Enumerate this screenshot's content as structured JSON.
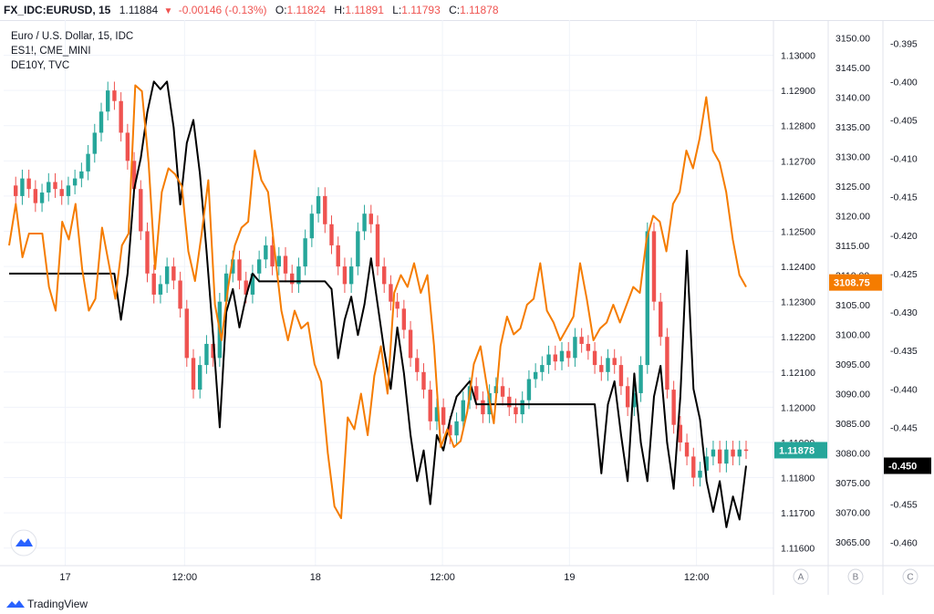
{
  "topbar": {
    "symbol": "FX_IDC:EURUSD, 15",
    "last": "1.11884",
    "arrow": "▼",
    "change": "-0.00146 (-0.13%)",
    "o_label": "O:",
    "o_value": "1.11824",
    "h_label": "H:",
    "h_value": "1.11891",
    "l_label": "L:",
    "l_value": "1.11793",
    "c_label": "C:",
    "c_value": "1.11878"
  },
  "legend": {
    "main": "Euro / U.S. Dollar, 15, IDC",
    "s1": "ES1!, CME_MINI",
    "s2": "DE10Y, TVC"
  },
  "footer": {
    "brand": "TradingView"
  },
  "colors": {
    "up": "#26a69a",
    "down": "#ef5350",
    "es": "#f57c00",
    "de": "#000000",
    "grid": "#f0f3fa",
    "axis": "#e0e3eb"
  },
  "chart_data": {
    "type": "line",
    "time_labels": [
      "17",
      "12:00",
      "18",
      "12:00",
      "19",
      "12:00"
    ],
    "axes": {
      "eurusd": {
        "ticks": [
          "1.13000",
          "1.12900",
          "1.12800",
          "1.12700",
          "1.12600",
          "1.12500",
          "1.12400",
          "1.12300",
          "1.12200",
          "1.12100",
          "1.12000",
          "1.11900",
          "1.11800",
          "1.11700",
          "1.11600"
        ],
        "range": [
          1.1155,
          1.131
        ],
        "last_tag": "1.11878"
      },
      "es1": {
        "ticks": [
          "3150.00",
          "3145.00",
          "3140.00",
          "3135.00",
          "3130.00",
          "3125.00",
          "3120.00",
          "3115.00",
          "3110.00",
          "3105.00",
          "3100.00",
          "3095.00",
          "3090.00",
          "3085.00",
          "3080.00",
          "3075.00",
          "3070.00",
          "3065.00"
        ],
        "range": [
          3061,
          3153
        ],
        "last_tag": "3108.75"
      },
      "de10y": {
        "ticks": [
          "-0.395",
          "-0.400",
          "-0.405",
          "-0.410",
          "-0.415",
          "-0.420",
          "-0.425",
          "-0.430",
          "-0.435",
          "-0.440",
          "-0.445",
          "-0.450",
          "-0.455",
          "-0.460"
        ],
        "range": [
          -0.463,
          -0.392
        ],
        "last_tag": "-0.450"
      }
    },
    "corner_labels": [
      "A",
      "B",
      "C"
    ],
    "series": [
      {
        "name": "ES1!, CME_MINI",
        "axis": "es1",
        "values": [
          3115,
          3122,
          3113,
          3117,
          3117,
          3117,
          3108,
          3104,
          3119,
          3116,
          3122,
          3111,
          3104,
          3106,
          3118,
          3112,
          3106,
          3115,
          3117,
          3142,
          3141,
          3129,
          3111,
          3124,
          3128,
          3127,
          3125,
          3114,
          3109,
          3117,
          3126,
          3105,
          3099,
          3108,
          3115,
          3118,
          3119,
          3131,
          3126,
          3124,
          3114,
          3104,
          3099,
          3104,
          3101,
          3102,
          3095,
          3092,
          3080,
          3071,
          3069,
          3086,
          3084,
          3090,
          3083,
          3093,
          3098,
          3090,
          3107,
          3110,
          3108,
          3112,
          3107,
          3110,
          3098,
          3081,
          3084,
          3081,
          3082,
          3087,
          3095,
          3098,
          3091,
          3085,
          3098,
          3103,
          3100,
          3101,
          3105,
          3106,
          3112,
          3104,
          3102,
          3099,
          3101,
          3103,
          3112,
          3106,
          3099,
          3101,
          3102,
          3105,
          3102,
          3105,
          3108,
          3107,
          3116,
          3120,
          3119,
          3114,
          3122,
          3124,
          3131,
          3128,
          3133,
          3140,
          3131,
          3129,
          3124,
          3116,
          3110,
          3108
        ]
      },
      {
        "name": "DE10Y, TVC",
        "axis": "de10y",
        "values": [
          -0.425,
          -0.425,
          -0.425,
          -0.425,
          -0.425,
          -0.425,
          -0.425,
          -0.425,
          -0.425,
          -0.425,
          -0.425,
          -0.425,
          -0.425,
          -0.425,
          -0.425,
          -0.425,
          -0.425,
          -0.431,
          -0.425,
          -0.414,
          -0.41,
          -0.404,
          -0.4,
          -0.401,
          -0.4,
          -0.406,
          -0.416,
          -0.408,
          -0.405,
          -0.412,
          -0.422,
          -0.433,
          -0.445,
          -0.43,
          -0.427,
          -0.432,
          -0.428,
          -0.425,
          -0.426,
          -0.426,
          -0.426,
          -0.426,
          -0.426,
          -0.426,
          -0.426,
          -0.426,
          -0.426,
          -0.426,
          -0.426,
          -0.427,
          -0.436,
          -0.431,
          -0.428,
          -0.433,
          -0.429,
          -0.423,
          -0.429,
          -0.435,
          -0.44,
          -0.432,
          -0.438,
          -0.446,
          -0.452,
          -0.448,
          -0.455,
          -0.446,
          -0.448,
          -0.444,
          -0.441,
          -0.44,
          -0.439,
          -0.442,
          -0.442,
          -0.442,
          -0.442,
          -0.442,
          -0.442,
          -0.442,
          -0.442,
          -0.442,
          -0.442,
          -0.442,
          -0.442,
          -0.442,
          -0.442,
          -0.442,
          -0.442,
          -0.442,
          -0.442,
          -0.442,
          -0.451,
          -0.442,
          -0.439,
          -0.446,
          -0.452,
          -0.438,
          -0.447,
          -0.452,
          -0.441,
          -0.437,
          -0.447,
          -0.453,
          -0.441,
          -0.422,
          -0.44,
          -0.444,
          -0.452,
          -0.456,
          -0.452,
          -0.458,
          -0.454,
          -0.457,
          -0.45
        ]
      },
      {
        "name": "Euro / U.S. Dollar, 15, IDC",
        "axis": "eurusd",
        "kind": "candlestick",
        "values": [
          1.1263,
          1.126,
          1.1265,
          1.1262,
          1.1258,
          1.1261,
          1.1264,
          1.1262,
          1.126,
          1.1263,
          1.1265,
          1.1267,
          1.1272,
          1.1278,
          1.1284,
          1.129,
          1.1287,
          1.1278,
          1.127,
          1.1262,
          1.125,
          1.1238,
          1.1232,
          1.1235,
          1.124,
          1.1236,
          1.1228,
          1.1214,
          1.1205,
          1.1212,
          1.1218,
          1.1214,
          1.123,
          1.1238,
          1.1242,
          1.1236,
          1.1232,
          1.1238,
          1.1242,
          1.1246,
          1.124,
          1.1243,
          1.1238,
          1.1235,
          1.124,
          1.1248,
          1.1255,
          1.126,
          1.1252,
          1.1246,
          1.124,
          1.1235,
          1.124,
          1.125,
          1.1255,
          1.1252,
          1.124,
          1.1235,
          1.123,
          1.1228,
          1.1222,
          1.1214,
          1.121,
          1.1205,
          1.1196,
          1.12,
          1.1195,
          1.1192,
          1.1196,
          1.1202,
          1.1206,
          1.1202,
          1.1198,
          1.1204,
          1.1206,
          1.1203,
          1.12,
          1.1198,
          1.1202,
          1.1208,
          1.121,
          1.1212,
          1.1215,
          1.1213,
          1.1216,
          1.1214,
          1.122,
          1.1218,
          1.1216,
          1.1212,
          1.121,
          1.1214,
          1.1212,
          1.1206,
          1.12,
          1.1204,
          1.1212,
          1.125,
          1.123,
          1.122,
          1.1205,
          1.1195,
          1.119,
          1.1186,
          1.118,
          1.1182,
          1.1186,
          1.1188,
          1.1184,
          1.1188,
          1.1186,
          1.1188,
          1.11878
        ]
      }
    ]
  }
}
